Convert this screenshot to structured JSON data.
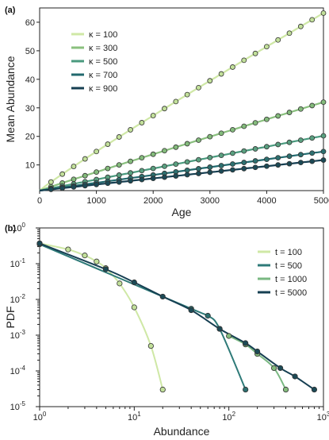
{
  "chart_data": [
    {
      "type": "line",
      "panel_label": "(a)",
      "xlabel": "Age",
      "ylabel": "Mean Abundance",
      "xlim": [
        0,
        5000
      ],
      "ylim": [
        1,
        65
      ],
      "xticks": [
        0,
        1000,
        2000,
        3000,
        4000,
        5000
      ],
      "yticks": [
        10,
        20,
        30,
        40,
        50,
        60
      ],
      "legend_position": "upper-left",
      "marker_x": [
        200,
        400,
        600,
        800,
        1000,
        1200,
        1400,
        1600,
        1800,
        2000,
        2200,
        2400,
        2600,
        2800,
        3000,
        3200,
        3400,
        3600,
        3800,
        4000,
        4200,
        4400,
        4600,
        4800,
        5000
      ],
      "series": [
        {
          "name": "κ = 100",
          "color": "#cfe8a6",
          "marker_color": "#c2e09a",
          "final": 63.2,
          "exponent": 0.94
        },
        {
          "name": "κ = 300",
          "color": "#8ac07e",
          "marker_color": "#84bb7c",
          "final": 32.0,
          "exponent": 0.97
        },
        {
          "name": "κ = 500",
          "color": "#4a9a7e",
          "marker_color": "#5aa080",
          "final": 20.2,
          "exponent": 0.99
        },
        {
          "name": "κ = 700",
          "color": "#22696e",
          "marker_color": "#2d7070",
          "final": 14.7,
          "exponent": 1.0
        },
        {
          "name": "κ = 900",
          "color": "#163f52",
          "marker_color": "#1c4a56",
          "final": 11.7,
          "exponent": 1.0
        }
      ]
    },
    {
      "type": "line",
      "panel_label": "(b)",
      "xlabel": "Abundance",
      "ylabel": "PDF",
      "xscale": "log",
      "yscale": "log",
      "xlim": [
        1,
        1000
      ],
      "ylim": [
        1e-05,
        1
      ],
      "xtick_base": "10",
      "xtick_exponents": [
        "0",
        "1",
        "2",
        "3"
      ],
      "ytick_base": "10",
      "ytick_exponents": [
        "0",
        "-1",
        "-2",
        "-3",
        "-4",
        "-5"
      ],
      "legend_position": "right",
      "series": [
        {
          "name": "t = 100",
          "color": "#cfe8a6",
          "marker_color": "#c2e09a",
          "points": [
            [
              1,
              0.37
            ],
            [
              2,
              0.25
            ],
            [
              3,
              0.17
            ],
            [
              4,
              0.115
            ],
            [
              5,
              0.075
            ],
            [
              7,
              0.028
            ],
            [
              10,
              0.006
            ],
            [
              15,
              0.0005
            ],
            [
              20,
              3e-05
            ]
          ]
        },
        {
          "name": "t = 500",
          "color": "#2e7a78",
          "marker_color": "#2d7070",
          "points": [
            [
              1,
              0.35
            ],
            [
              40,
              0.0055
            ],
            [
              60,
              0.0035
            ],
            [
              80,
              0.0015
            ],
            [
              150,
              3e-05
            ]
          ]
        },
        {
          "name": "t = 1000",
          "color": "#7ab882",
          "marker_color": "#84bb7c",
          "points": [
            [
              100,
              0.00095
            ],
            [
              150,
              0.00055
            ],
            [
              200,
              0.0003
            ],
            [
              300,
              0.00012
            ],
            [
              400,
              3e-05
            ]
          ]
        },
        {
          "name": "t = 5000",
          "color": "#163f52",
          "marker_color": "#1c4a56",
          "points": [
            [
              1,
              0.37
            ],
            [
              5,
              0.07
            ],
            [
              10,
              0.03
            ],
            [
              20,
              0.012
            ],
            [
              40,
              0.005
            ],
            [
              80,
              0.0015
            ],
            [
              150,
              0.0006
            ],
            [
              200,
              0.00035
            ],
            [
              350,
              0.00012
            ],
            [
              500,
              7e-05
            ],
            [
              800,
              3e-05
            ]
          ]
        }
      ]
    }
  ]
}
